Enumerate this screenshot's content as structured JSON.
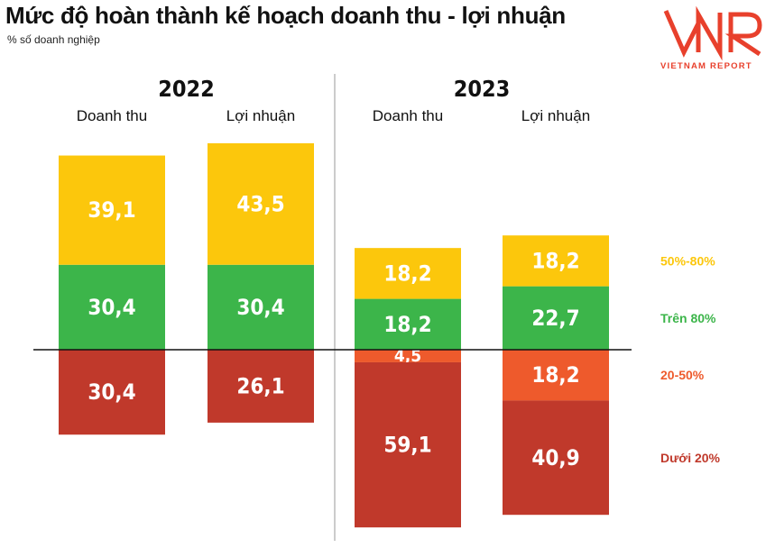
{
  "header": {
    "title": "Mức độ hoàn thành kế hoạch doanh thu - lợi nhuận",
    "subtitle": "% số doanh nghiệp"
  },
  "logo": {
    "mark": "VNR",
    "tagline": "VIETNAM REPORT"
  },
  "colors": {
    "tren_80": "#3cb54a",
    "tu_50_80": "#fcc70c",
    "tu_20_50": "#ee5a2c",
    "duoi_20": "#c0392b",
    "logo": "#e8402c"
  },
  "chart_data": {
    "type": "bar",
    "stacked": true,
    "diverging": true,
    "unit": "%",
    "groups": [
      "2022",
      "2023"
    ],
    "categories": [
      "Doanh thu",
      "Lợi nhuận",
      "Doanh thu",
      "Lợi nhuận"
    ],
    "category_group": [
      "2022",
      "2022",
      "2023",
      "2023"
    ],
    "series": [
      {
        "name": "Trên 80%",
        "color": "#3cb54a",
        "side": "above",
        "values": [
          30.4,
          30.4,
          18.2,
          22.7
        ],
        "labels": [
          "30,4",
          "30,4",
          "18,2",
          "22,7"
        ]
      },
      {
        "name": "50%-80%",
        "color": "#fcc70c",
        "side": "above",
        "values": [
          39.1,
          43.5,
          18.2,
          18.2
        ],
        "labels": [
          "39,1",
          "43,5",
          "18,2",
          "18,2"
        ]
      },
      {
        "name": "20-50%",
        "color": "#ee5a2c",
        "side": "below",
        "values": [
          0,
          0,
          4.5,
          18.2
        ],
        "labels": [
          "",
          "",
          "4,5",
          "18,2"
        ]
      },
      {
        "name": "Dưới 20%",
        "color": "#c0392b",
        "side": "below",
        "values": [
          30.4,
          26.1,
          59.1,
          40.9
        ],
        "labels": [
          "30,4",
          "26,1",
          "59,1",
          "40,9"
        ]
      }
    ],
    "legend_position": "right"
  }
}
